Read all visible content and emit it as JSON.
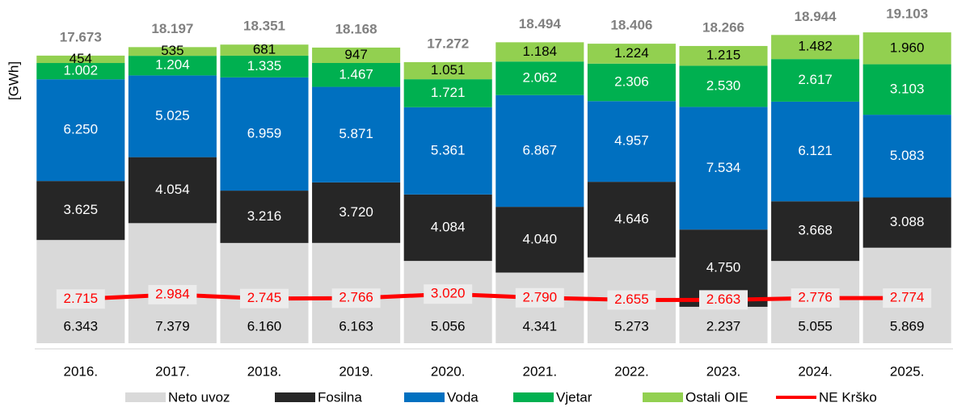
{
  "chart_data": {
    "type": "bar",
    "stacked": true,
    "y_label": "[GWh]",
    "categories": [
      "2016.",
      "2017.",
      "2018.",
      "2019.",
      "2020.",
      "2021.",
      "2022.",
      "2023.",
      "2024.",
      "2025."
    ],
    "ylim": [
      0,
      20000
    ],
    "series": [
      {
        "name": "Neto uvoz",
        "color": "#d9d9d9",
        "values": [
          6343,
          7379,
          6160,
          6163,
          5056,
          4341,
          5273,
          2237,
          5055,
          5869
        ],
        "value_labels": [
          "6.343",
          "7.379",
          "6.160",
          "6.163",
          "5.056",
          "4.341",
          "5.273",
          "2.237",
          "5.055",
          "5.869"
        ]
      },
      {
        "name": "Fosilna",
        "color": "#262626",
        "values": [
          3625,
          4054,
          3216,
          3720,
          4084,
          4040,
          4646,
          4750,
          3668,
          3088
        ],
        "value_labels": [
          "3.625",
          "4.054",
          "3.216",
          "3.720",
          "4.084",
          "4.040",
          "4.646",
          "4.750",
          "3.668",
          "3.088"
        ]
      },
      {
        "name": "Voda",
        "color": "#0070c0",
        "values": [
          6250,
          5025,
          6959,
          5871,
          5361,
          6867,
          4957,
          7534,
          6121,
          5083
        ],
        "value_labels": [
          "6.250",
          "5.025",
          "6.959",
          "5.871",
          "5.361",
          "6.867",
          "4.957",
          "7.534",
          "6.121",
          "5.083"
        ]
      },
      {
        "name": "Vjetar",
        "color": "#00b050",
        "values": [
          1002,
          1204,
          1335,
          1467,
          1721,
          2062,
          2306,
          2530,
          2617,
          3103
        ],
        "value_labels": [
          "1.002",
          "1.204",
          "1.335",
          "1.467",
          "1.721",
          "2.062",
          "2.306",
          "2.530",
          "2.617",
          "3.103"
        ]
      },
      {
        "name": "Ostali OIE",
        "color": "#92d050",
        "values": [
          454,
          535,
          681,
          947,
          1051,
          1184,
          1224,
          1215,
          1482,
          1960
        ],
        "value_labels": [
          "454",
          "535",
          "681",
          "947",
          "1.051",
          "1.184",
          "1.224",
          "1.215",
          "1.482",
          "1.960"
        ]
      },
      {
        "name": "NE Krško",
        "type": "line",
        "color": "#ff0000",
        "values": [
          2715,
          2984,
          2745,
          2766,
          3020,
          2790,
          2655,
          2663,
          2776,
          2774
        ],
        "value_labels": [
          "2.715",
          "2.984",
          "2.745",
          "2.766",
          "3.020",
          "2.790",
          "2.655",
          "2.663",
          "2.776",
          "2.774"
        ]
      }
    ],
    "totals": {
      "values": [
        17673,
        18197,
        18351,
        18168,
        17272,
        18494,
        18406,
        18266,
        18944,
        19103
      ],
      "value_labels": [
        "17.673",
        "18.197",
        "18.351",
        "18.168",
        "17.272",
        "18.494",
        "18.406",
        "18.266",
        "18.944",
        "19.103"
      ]
    }
  }
}
